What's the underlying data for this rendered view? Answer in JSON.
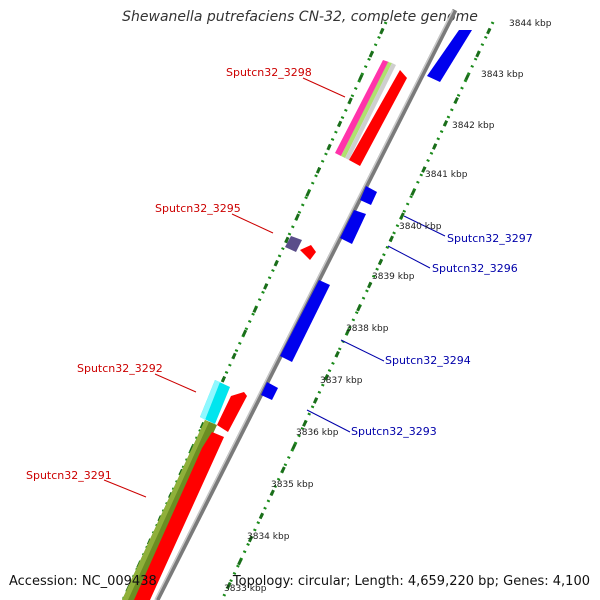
{
  "title": "Shewanella putrefaciens CN-32, complete genome",
  "footer": {
    "accession": "Accession: NC_009438",
    "topology": "Topology: circular; Length: 4,659,220 bp; Genes: 4,100"
  },
  "colors": {
    "forward_label": "#cc0000",
    "reverse_label": "#0000aa",
    "forward_gene": "#ff0000",
    "reverse_gene": "#0000ee",
    "backbone": "#9a9a9a",
    "tick_green": "#1a8a1a",
    "olive": "#6b8e23",
    "cyan": "#00e5ee"
  },
  "ticks": [
    "3844 kbp",
    "3843 kbp",
    "3842 kbp",
    "3841 kbp",
    "3840 kbp",
    "3839 kbp",
    "3838 kbp",
    "3837 kbp",
    "3836 kbp",
    "3835 kbp",
    "3834 kbp",
    "3833 kbp"
  ],
  "gene_labels": {
    "forward": [
      "Sputcn32_3298",
      "Sputcn32_3295",
      "Sputcn32_3292",
      "Sputcn32_3291"
    ],
    "reverse": [
      "Sputcn32_3297",
      "Sputcn32_3296",
      "Sputcn32_3294",
      "Sputcn32_3293"
    ]
  }
}
